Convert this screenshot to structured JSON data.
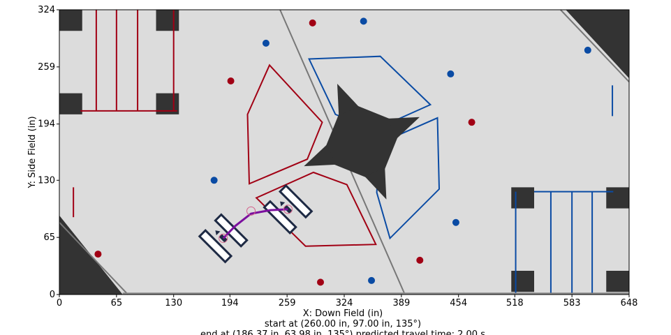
{
  "chart_data": {
    "type": "scatter",
    "title": "",
    "xlabel": "X: Down Field (in)",
    "ylabel": "Y: Side Field (in)",
    "xlim": [
      0,
      648
    ],
    "ylim": [
      0,
      324
    ],
    "x_ticks": [
      0,
      65,
      130,
      194,
      259,
      324,
      389,
      454,
      518,
      583,
      648
    ],
    "y_ticks": [
      0,
      65,
      130,
      194,
      259,
      324
    ],
    "grid": false,
    "caption_lines": [
      "start at (260.00 in, 97.00 in, 135°)",
      "end at (186.37 in, 63.98 in, 135°) predicted travel time: 2.00 s"
    ],
    "colors": {
      "field": "#dcdcdc",
      "dark": "#333333",
      "red": "#a10014",
      "blue": "#0a4ba4",
      "path": "#7b0f9e",
      "robot": "#1e2a44"
    },
    "red_balls": [
      [
        44,
        46
      ],
      [
        195,
        76
      ],
      [
        195,
        243
      ],
      [
        288,
        309
      ],
      [
        297,
        14
      ],
      [
        410,
        39
      ],
      [
        469,
        196
      ]
    ],
    "blue_balls": [
      [
        176,
        130
      ],
      [
        235,
        286
      ],
      [
        346,
        311
      ],
      [
        355,
        16
      ],
      [
        445,
        251
      ],
      [
        451,
        82
      ],
      [
        601,
        278
      ]
    ],
    "red_goal": [
      [
        239,
        261
      ],
      [
        214,
        205
      ],
      [
        216,
        126
      ],
      [
        282,
        154
      ],
      [
        299,
        196
      ]
    ],
    "red_goal_2": [
      [
        224,
        110
      ],
      [
        289,
        139
      ],
      [
        327,
        125
      ],
      [
        360,
        57
      ],
      [
        280,
        55
      ]
    ],
    "blue_goal": [
      [
        284,
        268
      ],
      [
        365,
        271
      ],
      [
        422,
        216
      ],
      [
        357,
        187
      ],
      [
        314,
        205
      ]
    ],
    "blue_goal_2": [
      [
        430,
        201
      ],
      [
        432,
        120
      ],
      [
        376,
        64
      ],
      [
        361,
        116
      ],
      [
        364,
        172
      ]
    ],
    "path": [
      [
        186.37,
        63.98
      ],
      [
        200,
        78
      ],
      [
        218,
        92
      ],
      [
        240,
        96
      ],
      [
        260,
        97
      ]
    ],
    "path_waypoints": [
      [
        186.37,
        63.98
      ],
      [
        218,
        95
      ],
      [
        260,
        97
      ]
    ],
    "start_pose": [
      260,
      97,
      135
    ],
    "end_pose": [
      186.37,
      63.98,
      135
    ]
  }
}
